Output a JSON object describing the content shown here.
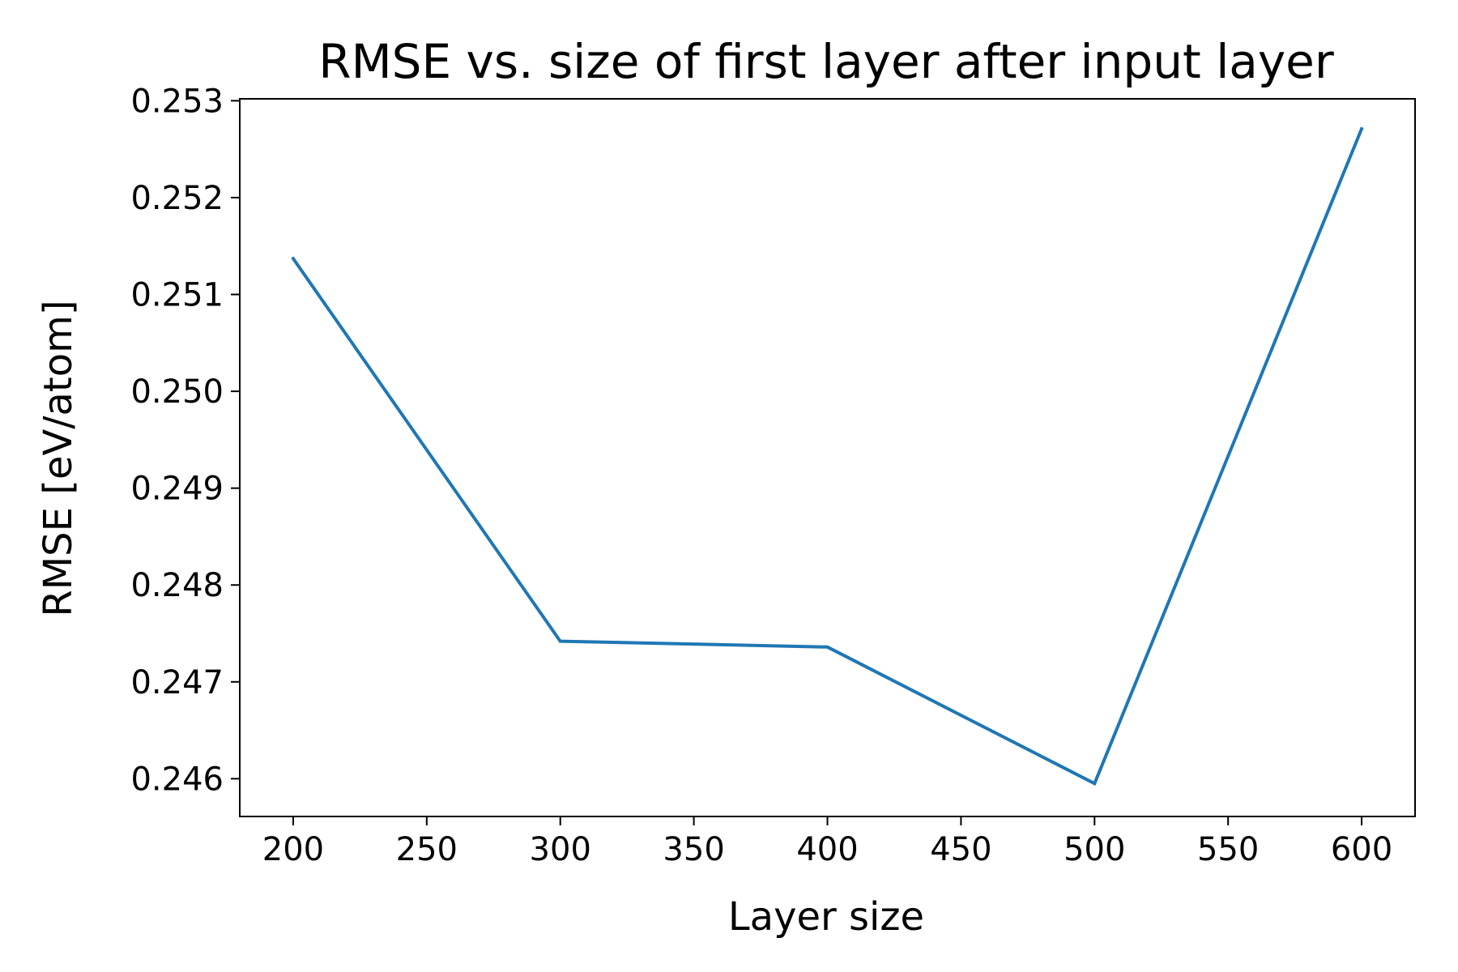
{
  "chart_data": {
    "type": "line",
    "title": "RMSE vs. size of first layer after input layer",
    "xlabel": "Layer size",
    "ylabel": "RMSE [eV/atom]",
    "xlim": [
      180,
      620
    ],
    "ylim": [
      0.24561,
      0.25302
    ],
    "xticks": [
      200,
      250,
      300,
      350,
      400,
      450,
      500,
      550,
      600
    ],
    "xtick_labels": [
      "200",
      "250",
      "300",
      "350",
      "400",
      "450",
      "500",
      "550",
      "600"
    ],
    "yticks": [
      0.246,
      0.247,
      0.248,
      0.249,
      0.25,
      0.251,
      0.252,
      0.253
    ],
    "ytick_labels": [
      "0.246",
      "0.247",
      "0.248",
      "0.249",
      "0.250",
      "0.251",
      "0.252",
      "0.253"
    ],
    "grid": false,
    "legend": "none",
    "series": [
      {
        "color": "#1f77b4",
        "x": [
          200,
          300,
          400,
          500,
          600
        ],
        "y": [
          0.25137,
          0.24742,
          0.24736,
          0.24595,
          0.25271
        ]
      }
    ]
  }
}
